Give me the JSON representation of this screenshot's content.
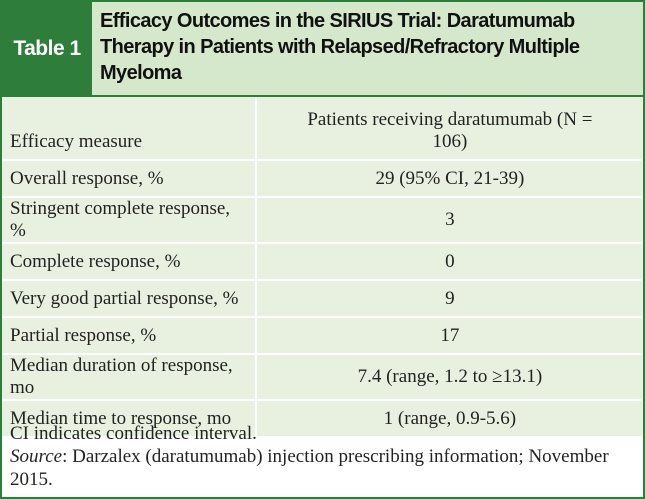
{
  "header": {
    "label": "Table 1",
    "title": "Efficacy Outcomes in the SIRIUS Trial: Daratumumab Therapy in Patients with Relapsed/Refractory Multiple Myeloma"
  },
  "table": {
    "columns": [
      "Efficacy measure",
      "Patients receiving daratumumab (N = 106)"
    ],
    "rows": [
      [
        "Overall response, %",
        "29 (95% CI, 21-39)"
      ],
      [
        "Stringent complete response, %",
        "3"
      ],
      [
        "Complete response, %",
        "0"
      ],
      [
        "Very good partial response, %",
        "9"
      ],
      [
        "Partial response, %",
        "17"
      ],
      [
        "Median duration of response, mo",
        "7.4 (range, 1.2 to ≥13.1)"
      ],
      [
        "Median time to response, mo",
        "1 (range, 0.9-5.6)"
      ]
    ]
  },
  "footnotes": {
    "abbreviation": "CI indicates confidence interval.",
    "source_label": "Source",
    "source_text": ": Darzalex (daratumumab) injection prescribing information; November 2015."
  }
}
